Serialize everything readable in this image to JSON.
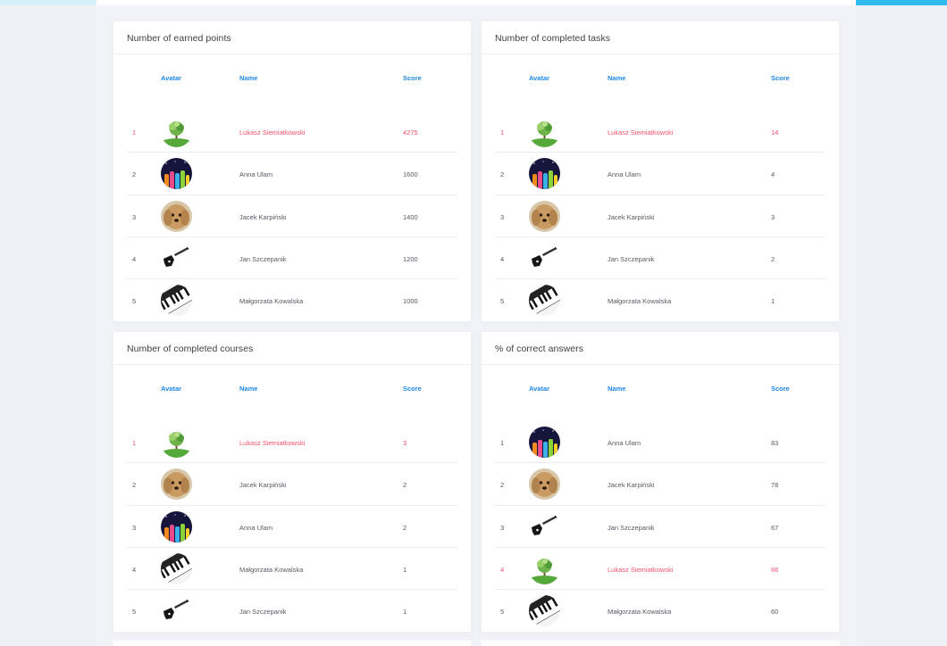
{
  "colors": {
    "accent_blue": "#1e88e5",
    "highlight_pink": "#f4516c",
    "top_bar_cyan": "#2fbcf0",
    "background": "#f2f3f8"
  },
  "columns": {
    "avatar": "Avatar",
    "name": "Name",
    "score": "Score"
  },
  "cards": [
    {
      "title": "Number of earned points",
      "rows": [
        {
          "rank": "1",
          "avatar": "tree-avatar",
          "name": "Lukasz Siemiatkowski",
          "score": "4275",
          "highlight": true
        },
        {
          "rank": "2",
          "avatar": "hands-avatar",
          "name": "Anna Ulam",
          "score": "1600",
          "highlight": false
        },
        {
          "rank": "3",
          "avatar": "dog-avatar",
          "name": "Jacek Karpiński",
          "score": "1400",
          "highlight": false
        },
        {
          "rank": "4",
          "avatar": "guitar-avatar",
          "name": "Jan Szczepanik",
          "score": "1200",
          "highlight": false
        },
        {
          "rank": "5",
          "avatar": "piano-avatar",
          "name": "Małgorzata Kowalska",
          "score": "1000",
          "highlight": false
        }
      ]
    },
    {
      "title": "Number of completed tasks",
      "rows": [
        {
          "rank": "1",
          "avatar": "tree-avatar",
          "name": "Lukasz Siemiatkowski",
          "score": "14",
          "highlight": true
        },
        {
          "rank": "2",
          "avatar": "hands-avatar",
          "name": "Anna Ulam",
          "score": "4",
          "highlight": false
        },
        {
          "rank": "3",
          "avatar": "dog-avatar",
          "name": "Jacek Karpiński",
          "score": "3",
          "highlight": false
        },
        {
          "rank": "4",
          "avatar": "guitar-avatar",
          "name": "Jan Szczepanik",
          "score": "2",
          "highlight": false
        },
        {
          "rank": "5",
          "avatar": "piano-avatar",
          "name": "Małgorzata Kowalska",
          "score": "1",
          "highlight": false
        }
      ]
    },
    {
      "title": "Number of completed courses",
      "rows": [
        {
          "rank": "1",
          "avatar": "tree-avatar",
          "name": "Lukasz Siemiatkowski",
          "score": "3",
          "highlight": true
        },
        {
          "rank": "2",
          "avatar": "dog-avatar",
          "name": "Jacek Karpiński",
          "score": "2",
          "highlight": false
        },
        {
          "rank": "3",
          "avatar": "hands-avatar",
          "name": "Anna Ulam",
          "score": "2",
          "highlight": false
        },
        {
          "rank": "4",
          "avatar": "piano-avatar",
          "name": "Małgorzata Kowalska",
          "score": "1",
          "highlight": false
        },
        {
          "rank": "5",
          "avatar": "guitar-avatar",
          "name": "Jan Szczepanik",
          "score": "1",
          "highlight": false
        }
      ]
    },
    {
      "title": "% of correct answers",
      "rows": [
        {
          "rank": "1",
          "avatar": "hands-avatar",
          "name": "Anna Ulam",
          "score": "83",
          "highlight": false
        },
        {
          "rank": "2",
          "avatar": "dog-avatar",
          "name": "Jacek Karpiński",
          "score": "78",
          "highlight": false
        },
        {
          "rank": "3",
          "avatar": "guitar-avatar",
          "name": "Jan Szczepanik",
          "score": "67",
          "highlight": false
        },
        {
          "rank": "4",
          "avatar": "tree-avatar",
          "name": "Lukasz Siemiatkowski",
          "score": "66",
          "highlight": true
        },
        {
          "rank": "5",
          "avatar": "piano-avatar",
          "name": "Małgorzata Kowalska",
          "score": "60",
          "highlight": false
        }
      ]
    }
  ]
}
